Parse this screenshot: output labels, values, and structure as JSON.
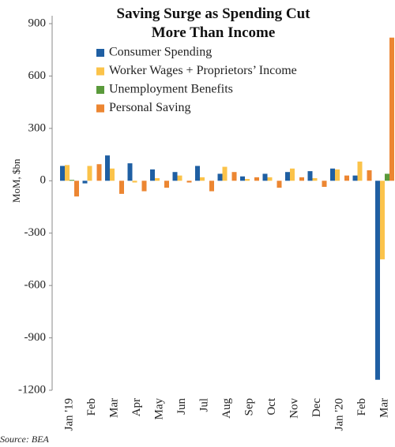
{
  "chart_data": {
    "type": "bar",
    "title": "Saving Surge as Spending Cut More Than Income",
    "y_label": "MoM, $bn",
    "source": "Source: BEA",
    "categories": [
      "Jan '19",
      "Feb",
      "Mar",
      "Apr",
      "May",
      "Jun",
      "Jul",
      "Aug",
      "Sep",
      "Oct",
      "Nov",
      "Dec",
      "Jan '20",
      "Feb",
      "Mar"
    ],
    "series": [
      {
        "name": "Consumer Spending",
        "color": "#1f5fa3",
        "values": [
          85,
          -15,
          145,
          100,
          65,
          50,
          85,
          40,
          25,
          40,
          50,
          55,
          70,
          30,
          -1140
        ]
      },
      {
        "name": "Worker Wages + Proprietors’ Income",
        "color": "#fbc34a",
        "values": [
          90,
          85,
          70,
          -10,
          15,
          30,
          20,
          80,
          10,
          20,
          70,
          15,
          65,
          110,
          -450
        ]
      },
      {
        "name": "Unemployment Benefits",
        "color": "#5a9a3b",
        "values": [
          5,
          0,
          0,
          0,
          0,
          0,
          0,
          0,
          0,
          0,
          0,
          0,
          0,
          0,
          40
        ]
      },
      {
        "name": "Personal Saving",
        "color": "#ec8632",
        "values": [
          -90,
          95,
          -75,
          -60,
          -40,
          -10,
          -60,
          50,
          20,
          -40,
          20,
          -35,
          30,
          60,
          820
        ]
      }
    ],
    "ylim": [
      -1200,
      900
    ],
    "yticks": [
      -1200,
      -900,
      -600,
      -300,
      0,
      300,
      600,
      900
    ]
  }
}
